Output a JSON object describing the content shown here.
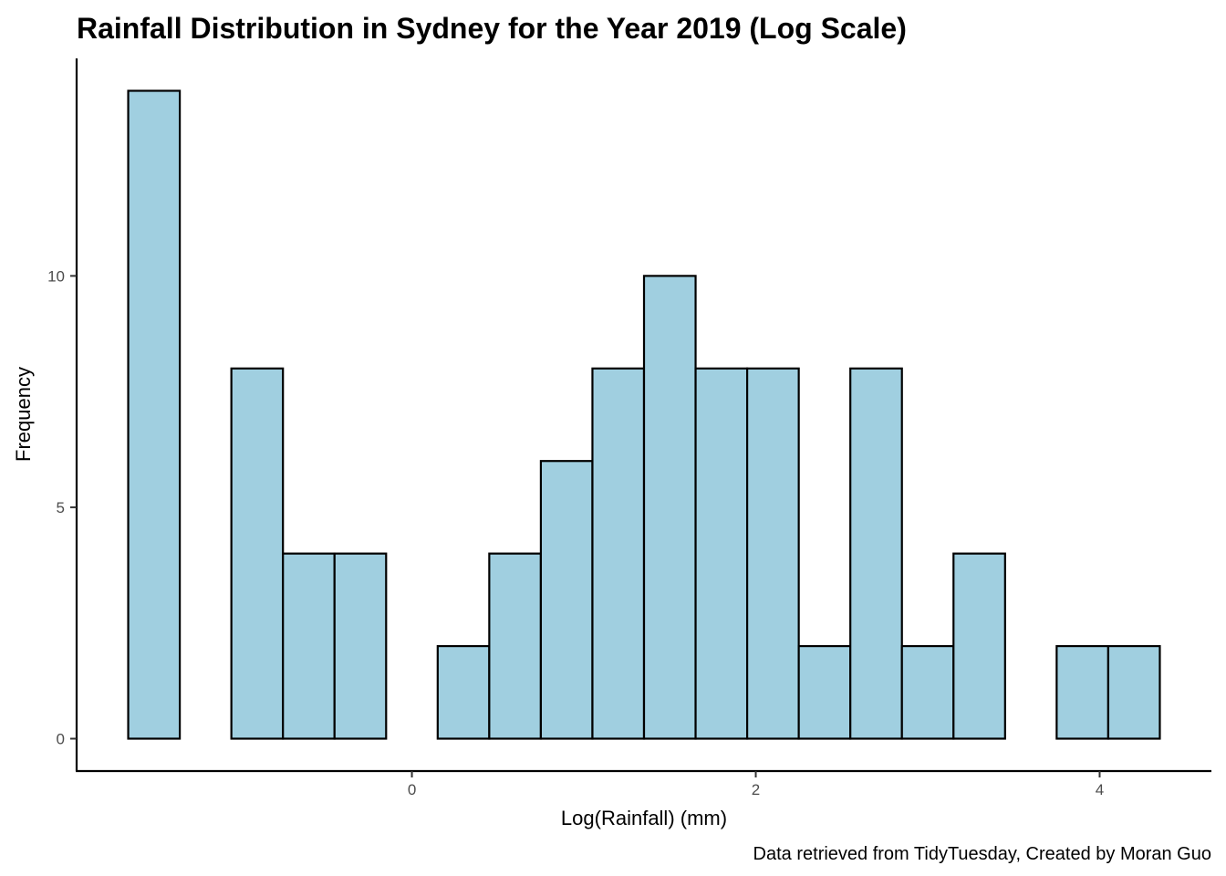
{
  "chart_data": {
    "type": "bar",
    "title": "Rainfall Distribution in Sydney for the Year 2019 (Log Scale)",
    "xlabel": "Log(Rainfall) (mm)",
    "ylabel": "Frequency",
    "caption": "Data retrieved from TidyTuesday, Created by Moran Guo",
    "bin_width": 0.3,
    "bins": [
      {
        "x_start": -1.65,
        "x_end": -1.35,
        "count": 14
      },
      {
        "x_start": -1.35,
        "x_end": -1.05,
        "count": 0
      },
      {
        "x_start": -1.05,
        "x_end": -0.75,
        "count": 8
      },
      {
        "x_start": -0.75,
        "x_end": -0.45,
        "count": 4
      },
      {
        "x_start": -0.45,
        "x_end": -0.15,
        "count": 4
      },
      {
        "x_start": -0.15,
        "x_end": 0.15,
        "count": 0
      },
      {
        "x_start": 0.15,
        "x_end": 0.45,
        "count": 2
      },
      {
        "x_start": 0.45,
        "x_end": 0.75,
        "count": 4
      },
      {
        "x_start": 0.75,
        "x_end": 1.05,
        "count": 6
      },
      {
        "x_start": 1.05,
        "x_end": 1.35,
        "count": 8
      },
      {
        "x_start": 1.35,
        "x_end": 1.65,
        "count": 10
      },
      {
        "x_start": 1.65,
        "x_end": 1.95,
        "count": 8
      },
      {
        "x_start": 1.95,
        "x_end": 2.25,
        "count": 8
      },
      {
        "x_start": 2.25,
        "x_end": 2.55,
        "count": 2
      },
      {
        "x_start": 2.55,
        "x_end": 2.85,
        "count": 8
      },
      {
        "x_start": 2.85,
        "x_end": 3.15,
        "count": 2
      },
      {
        "x_start": 3.15,
        "x_end": 3.45,
        "count": 4
      },
      {
        "x_start": 3.45,
        "x_end": 3.75,
        "count": 0
      },
      {
        "x_start": 3.75,
        "x_end": 4.05,
        "count": 2
      },
      {
        "x_start": 4.05,
        "x_end": 4.35,
        "count": 2
      }
    ],
    "xlim": [
      -1.95,
      4.65
    ],
    "ylim": [
      -0.7,
      14.7
    ],
    "x_ticks": [
      0,
      2,
      4
    ],
    "x_tick_labels": [
      "0",
      "2",
      "4"
    ],
    "y_ticks": [
      0,
      5,
      10
    ],
    "y_tick_labels": [
      "0",
      "5",
      "10"
    ],
    "bar_color": "#a0cfe0",
    "bar_outline_color": "#000000",
    "grid": false,
    "legend": "none"
  }
}
